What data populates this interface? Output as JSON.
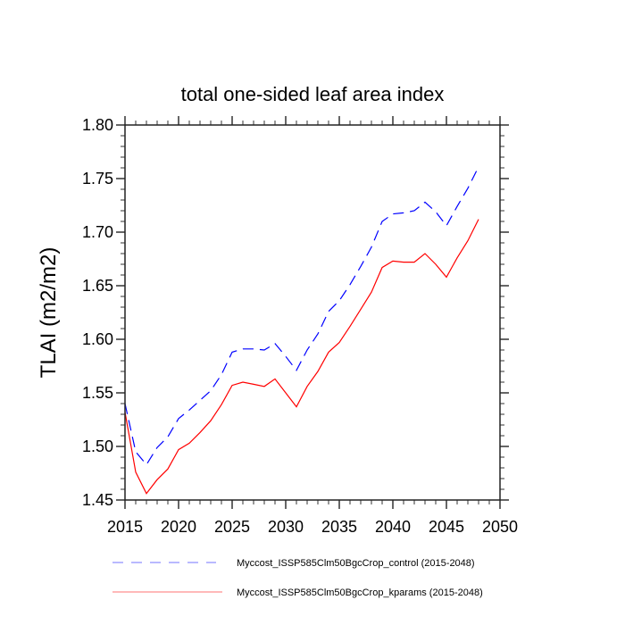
{
  "chart_data": {
    "type": "line",
    "title": "total one-sided leaf area index",
    "xlabel": "",
    "ylabel": "TLAI  (m2/m2)",
    "xlim": [
      2015,
      2050
    ],
    "ylim": [
      1.45,
      1.8
    ],
    "xticks": [
      "2015",
      "2020",
      "2025",
      "2030",
      "2035",
      "2040",
      "2045",
      "2050"
    ],
    "yticks": [
      "1.45",
      "1.50",
      "1.55",
      "1.60",
      "1.65",
      "1.70",
      "1.75",
      "1.80"
    ],
    "grid": false,
    "legend_position": "bottom",
    "x": [
      2015,
      2016,
      2017,
      2018,
      2019,
      2020,
      2021,
      2022,
      2023,
      2024,
      2025,
      2026,
      2027,
      2028,
      2029,
      2030,
      2031,
      2032,
      2033,
      2034,
      2035,
      2036,
      2037,
      2038,
      2039,
      2040,
      2041,
      2042,
      2043,
      2044,
      2045,
      2046,
      2047,
      2048
    ],
    "series": [
      {
        "name": "Myccost_ISSP585Clm50BgcCrop_control (2015-2048)",
        "color": "#0000ff",
        "style": "dashed",
        "values": [
          1.54,
          1.495,
          1.483,
          1.499,
          1.509,
          1.526,
          1.534,
          1.543,
          1.552,
          1.567,
          1.588,
          1.591,
          1.591,
          1.59,
          1.596,
          1.584,
          1.571,
          1.59,
          1.605,
          1.626,
          1.636,
          1.651,
          1.668,
          1.686,
          1.71,
          1.717,
          1.718,
          1.72,
          1.728,
          1.719,
          1.706,
          1.724,
          1.741,
          1.761
        ]
      },
      {
        "name": "Myccost_ISSP585Clm50BgcCrop_kparams (2015-2048)",
        "color": "#ff0000",
        "style": "solid",
        "values": [
          1.532,
          1.476,
          1.456,
          1.469,
          1.479,
          1.497,
          1.503,
          1.513,
          1.524,
          1.539,
          1.557,
          1.56,
          1.558,
          1.556,
          1.563,
          1.55,
          1.537,
          1.556,
          1.57,
          1.588,
          1.597,
          1.612,
          1.628,
          1.644,
          1.667,
          1.673,
          1.672,
          1.672,
          1.68,
          1.67,
          1.658,
          1.676,
          1.692,
          1.712
        ]
      }
    ]
  }
}
